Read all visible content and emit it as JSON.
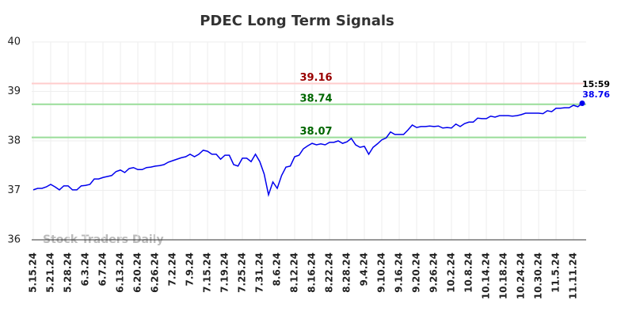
{
  "chart_data": {
    "type": "line",
    "title": "PDEC Long Term Signals",
    "watermark": "Stock Traders Daily",
    "categories": [
      "5.15.24",
      null,
      null,
      null,
      "5.21.24",
      null,
      null,
      null,
      "5.28.24",
      null,
      null,
      null,
      "6.3.24",
      null,
      null,
      null,
      "6.7.24",
      null,
      null,
      null,
      "6.13.24",
      null,
      null,
      null,
      "6.20.24",
      null,
      null,
      null,
      "6.26.24",
      null,
      null,
      null,
      "7.2.24",
      null,
      null,
      null,
      "7.9.24",
      null,
      null,
      null,
      "7.15.24",
      null,
      null,
      null,
      "7.19.24",
      null,
      null,
      null,
      "7.25.24",
      null,
      null,
      null,
      "7.31.24",
      null,
      null,
      null,
      "8.6.24",
      null,
      null,
      null,
      "8.12.24",
      null,
      null,
      null,
      "8.16.24",
      null,
      null,
      null,
      "8.22.24",
      null,
      null,
      null,
      "8.28.24",
      null,
      null,
      null,
      "9.4.24",
      null,
      null,
      null,
      "9.10.24",
      null,
      null,
      null,
      "9.16.24",
      null,
      null,
      null,
      "9.20.24",
      null,
      null,
      null,
      "9.26.24",
      null,
      null,
      null,
      "10.2.24",
      null,
      null,
      null,
      "10.8.24",
      null,
      null,
      null,
      "10.14.24",
      null,
      null,
      null,
      "10.18.24",
      null,
      null,
      null,
      "10.24.24",
      null,
      null,
      null,
      "10.30.24",
      null,
      null,
      null,
      "11.5.24",
      null,
      null,
      null,
      "11.11.24",
      null,
      null
    ],
    "series": [
      {
        "name": "PDEC",
        "color": "#0000ee",
        "values": [
          37.01,
          37.04,
          37.04,
          37.07,
          37.12,
          37.07,
          37.01,
          37.09,
          37.09,
          37.01,
          37.01,
          37.09,
          37.1,
          37.12,
          37.23,
          37.23,
          37.26,
          37.28,
          37.3,
          37.38,
          37.41,
          37.36,
          37.44,
          37.46,
          37.42,
          37.42,
          37.46,
          37.47,
          37.49,
          37.5,
          37.52,
          37.57,
          37.6,
          37.63,
          37.66,
          37.68,
          37.73,
          37.68,
          37.73,
          37.81,
          37.79,
          37.73,
          37.73,
          37.63,
          37.71,
          37.71,
          37.52,
          37.49,
          37.65,
          37.65,
          37.58,
          37.73,
          37.58,
          37.33,
          36.91,
          37.17,
          37.04,
          37.3,
          37.47,
          37.49,
          37.68,
          37.71,
          37.84,
          37.9,
          37.95,
          37.92,
          37.94,
          37.92,
          37.97,
          37.97,
          38.0,
          37.95,
          37.98,
          38.05,
          37.92,
          37.87,
          37.89,
          37.73,
          37.87,
          37.94,
          38.02,
          38.06,
          38.18,
          38.13,
          38.13,
          38.13,
          38.22,
          38.32,
          38.27,
          38.29,
          38.29,
          38.3,
          38.29,
          38.3,
          38.26,
          38.27,
          38.26,
          38.34,
          38.29,
          38.35,
          38.38,
          38.38,
          38.46,
          38.45,
          38.45,
          38.5,
          38.48,
          38.51,
          38.51,
          38.51,
          38.5,
          38.51,
          38.53,
          38.56,
          38.56,
          38.56,
          38.56,
          38.55,
          38.61,
          38.59,
          38.66,
          38.66,
          38.67,
          38.67,
          38.72,
          38.69,
          38.76
        ]
      }
    ],
    "last_time": "15:59",
    "reference_lines": [
      {
        "value": 39.16,
        "color": "#ffcccc",
        "label_color": "#990000"
      },
      {
        "value": 38.74,
        "color": "#99dd99",
        "label_color": "#006600"
      },
      {
        "value": 38.07,
        "color": "#99dd99",
        "label_color": "#006600"
      }
    ],
    "ylim": [
      36,
      40
    ],
    "yticks": [
      36,
      37,
      38,
      39,
      40
    ],
    "grid": true
  }
}
